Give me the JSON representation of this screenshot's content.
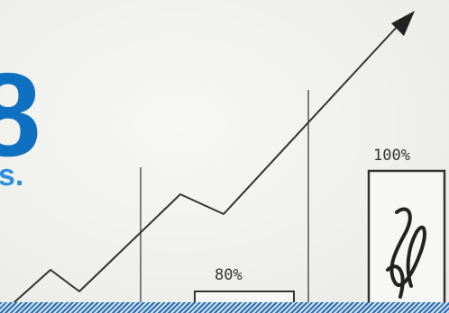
{
  "banner": {
    "logo_fragment": "8",
    "tagline_fragment": "s.",
    "bar_small_label": "80%",
    "bar_large_label": "100%",
    "colors": {
      "brand_blue": "#0f6fc0",
      "brand_blue_light": "#2b8ee0",
      "ink": "#333333",
      "floor": "#2f6fae"
    },
    "icons": [
      "upward-trend-arrow-icon",
      "scribble-bar-icon"
    ]
  }
}
